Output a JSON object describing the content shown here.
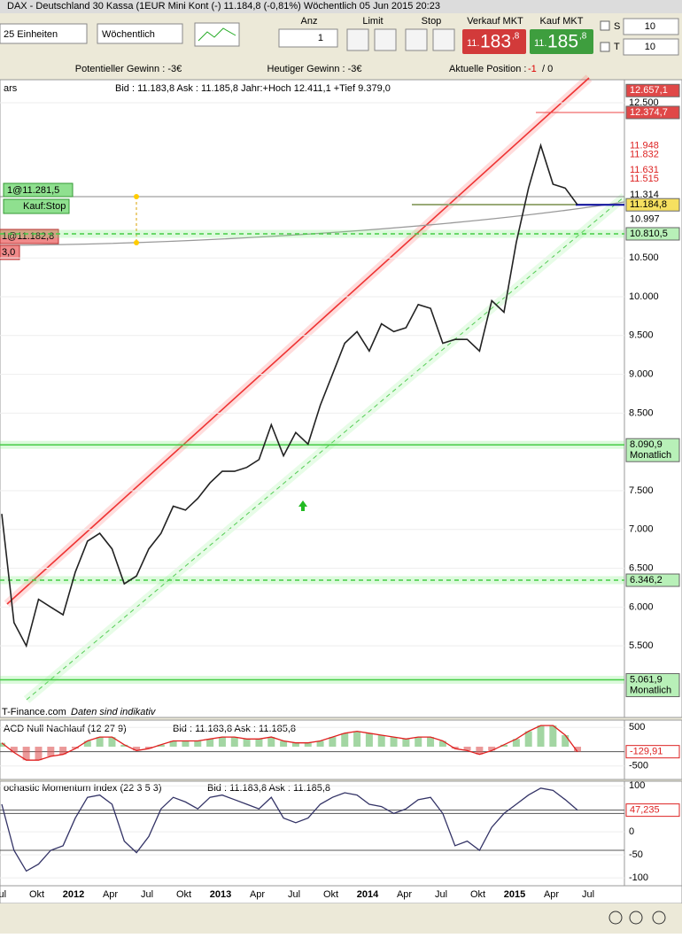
{
  "title_bar": "DAX - Deutschland 30 Kassa (1EUR Mini Kont (-)     11.184,8 (-0,81%)     Wöchentlich   05 Jun 2015 20:23",
  "toolbar": {
    "units": "25 Einheiten",
    "period": "Wöchentlich",
    "qty_label": "Anz",
    "qty": "1",
    "limit_label": "Limit",
    "stop_label": "Stop",
    "sell_label": "Verkauf MKT",
    "sell_price": [
      "11.",
      "183",
      ",8"
    ],
    "buy_label": "Kauf MKT",
    "buy_price": [
      "11.",
      "185",
      ",8"
    ],
    "s_label": "S",
    "s_value": "10",
    "t_label": "T",
    "t_value": "10"
  },
  "info_bar": {
    "potential": "Potentieller Gewinn : -3€",
    "today": "Heutiger Gewinn : -3€",
    "position_label": "Aktuelle Position :",
    "position": "-1",
    "position_rest": "/ 0"
  },
  "chart_data": [
    {
      "type": "line",
      "header": "ars",
      "quote": "Bid : 11.183,8 Ask : 11.185,8 Jahr:+Hoch 12.411,1 +Tief 9.379,0",
      "color": "#222222",
      "values": [
        7200,
        5800,
        5500,
        6100,
        6000,
        5900,
        6450,
        6850,
        6950,
        6750,
        6300,
        6400,
        6750,
        6950,
        7300,
        7250,
        7400,
        7600,
        7750,
        7750,
        7800,
        7900,
        8350,
        7950,
        8250,
        8100,
        8600,
        9000,
        9400,
        9550,
        9300,
        9650,
        9550,
        9600,
        9900,
        9850,
        9400,
        9450,
        9450,
        9300,
        9950,
        9800,
        10700,
        11400,
        11950,
        11450,
        11400,
        11184.8
      ],
      "ylim": [
        4577,
        12797
      ],
      "yticks": [
        {
          "value": 12500,
          "label": "12.500"
        },
        {
          "value": 10500,
          "label": "10.500"
        },
        {
          "value": 10000,
          "label": "10.000"
        },
        {
          "value": 9500,
          "label": "9.500"
        },
        {
          "value": 9000,
          "label": "9.000"
        },
        {
          "value": 8500,
          "label": "8.500"
        },
        {
          "value": 7500,
          "label": "7.500"
        },
        {
          "value": 7000,
          "label": "7.000"
        },
        {
          "value": 6500,
          "label": "6.500"
        },
        {
          "value": 6000,
          "label": "6.000"
        },
        {
          "value": 5500,
          "label": "5.500"
        }
      ],
      "levels": [
        {
          "value": 12657.1,
          "label": "12.657,1",
          "color": "red"
        },
        {
          "value": 12374.7,
          "label": "12.374,7",
          "color": "red"
        },
        {
          "value": 11948,
          "label": "11.948",
          "color": "redtext"
        },
        {
          "value": 11832,
          "label": "11.832",
          "color": "redtext"
        },
        {
          "value": 11631,
          "label": "11.631",
          "color": "redtext"
        },
        {
          "value": 11515,
          "label": "11.515",
          "color": "redtext"
        },
        {
          "value": 11314,
          "label": "11.314",
          "color": "plain"
        },
        {
          "value": 11184.8,
          "label": "11.184,8",
          "color": "yellow"
        },
        {
          "value": 10997,
          "label": "10.997",
          "color": "plain"
        },
        {
          "value": 10810.5,
          "label": "10.810,5",
          "color": "green"
        },
        {
          "value": 8090.9,
          "label": "8.090,9",
          "note": "Monatlich",
          "color": "green"
        },
        {
          "value": 6346.2,
          "label": "6.346,2",
          "color": "green"
        },
        {
          "value": 5061.9,
          "label": "5.061,9",
          "note": "Monatlich",
          "color": "green"
        }
      ],
      "orders": [
        "1@11.281,5",
        "Kauf:Stop",
        "1@11.182,8",
        "3,0"
      ],
      "watermark": "T-Finance.com",
      "watermark_note": "Daten sind indikativ"
    },
    {
      "type": "line",
      "title": "ACD Null Nachlauf (12 27 9)",
      "quote": "Bid : 11.183,8 Ask : 11.185,8",
      "color": "#e02020",
      "values": [
        100,
        -150,
        -350,
        -350,
        -250,
        -200,
        -50,
        150,
        250,
        250,
        50,
        -100,
        -50,
        50,
        150,
        150,
        150,
        200,
        250,
        250,
        200,
        200,
        250,
        150,
        100,
        100,
        150,
        250,
        350,
        400,
        350,
        300,
        250,
        200,
        250,
        250,
        150,
        -50,
        -100,
        -200,
        -100,
        50,
        200,
        400,
        550,
        550,
        300,
        -129.91
      ],
      "ylim": [
        -850,
        690
      ],
      "yticks": [
        500,
        -500
      ],
      "current": {
        "value": -129.91,
        "label": "-129,91"
      }
    },
    {
      "type": "line",
      "title": "ochastic Momentum Index (22 3 5 3)",
      "quote": "Bid : 11.183,8 Ask : 11.185,8",
      "color": "#333366",
      "values": [
        60,
        -40,
        -85,
        -70,
        -40,
        -30,
        30,
        75,
        80,
        60,
        -20,
        -45,
        -10,
        50,
        75,
        65,
        50,
        75,
        80,
        70,
        60,
        50,
        75,
        30,
        20,
        30,
        60,
        75,
        85,
        80,
        60,
        55,
        40,
        50,
        70,
        75,
        40,
        -30,
        -20,
        -40,
        10,
        40,
        60,
        80,
        95,
        90,
        70,
        47.235
      ],
      "ylim": [
        -117,
        110
      ],
      "yticks": [
        100,
        0,
        -50,
        -100
      ],
      "levels": [
        40,
        -40
      ],
      "current": {
        "value": 47.235,
        "label": "47,235"
      },
      "x_labels": [
        "Jul",
        "Okt",
        "2012",
        "Apr",
        "Jul",
        "Okt",
        "2013",
        "Apr",
        "Jul",
        "Okt",
        "2014",
        "Apr",
        "Jul",
        "Okt",
        "2015",
        "Apr",
        "Jul"
      ]
    }
  ]
}
